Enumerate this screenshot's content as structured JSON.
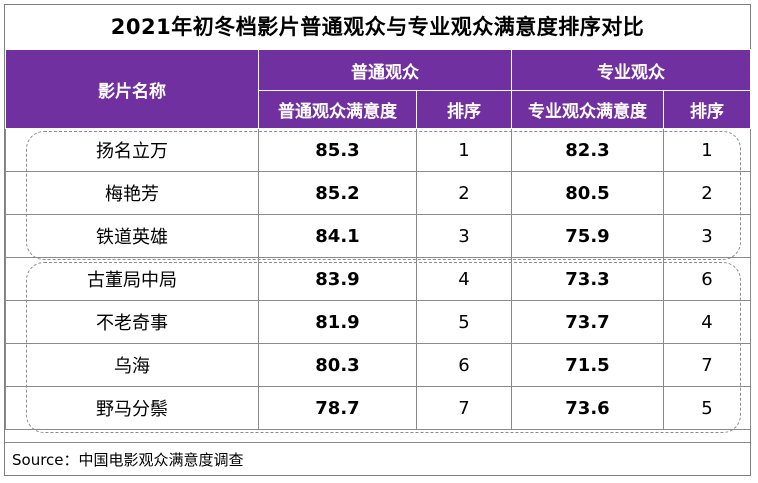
{
  "chart_data": {
    "type": "table",
    "title": "2021年初冬档影片普通观众与专业观众满意度排序对比",
    "header_groups": [
      "影片名称",
      "普通观众",
      "专业观众"
    ],
    "columns": [
      "普通观众满意度",
      "排序",
      "专业观众满意度",
      "排序"
    ],
    "rows": [
      {
        "film": "扬名立万",
        "general_score": "85.3",
        "general_rank": "1",
        "pro_score": "82.3",
        "pro_rank": "1"
      },
      {
        "film": "梅艳芳",
        "general_score": "85.2",
        "general_rank": "2",
        "pro_score": "80.5",
        "pro_rank": "2"
      },
      {
        "film": "铁道英雄",
        "general_score": "84.1",
        "general_rank": "3",
        "pro_score": "75.9",
        "pro_rank": "3"
      },
      {
        "film": "古董局中局",
        "general_score": "83.9",
        "general_rank": "4",
        "pro_score": "73.3",
        "pro_rank": "6"
      },
      {
        "film": "不老奇事",
        "general_score": "81.9",
        "general_rank": "5",
        "pro_score": "73.7",
        "pro_rank": "4"
      },
      {
        "film": "乌海",
        "general_score": "80.3",
        "general_rank": "6",
        "pro_score": "71.5",
        "pro_rank": "7"
      },
      {
        "film": "野马分鬃",
        "general_score": "78.7",
        "general_rank": "7",
        "pro_score": "73.6",
        "pro_rank": "5"
      }
    ],
    "source": "Source：中国电影观众满意度调查"
  },
  "colors": {
    "header_bg": "#7030a0",
    "header_text": "#ffffff",
    "border": "#8a8a8a",
    "dashed_outline": "#8c8c8c"
  }
}
